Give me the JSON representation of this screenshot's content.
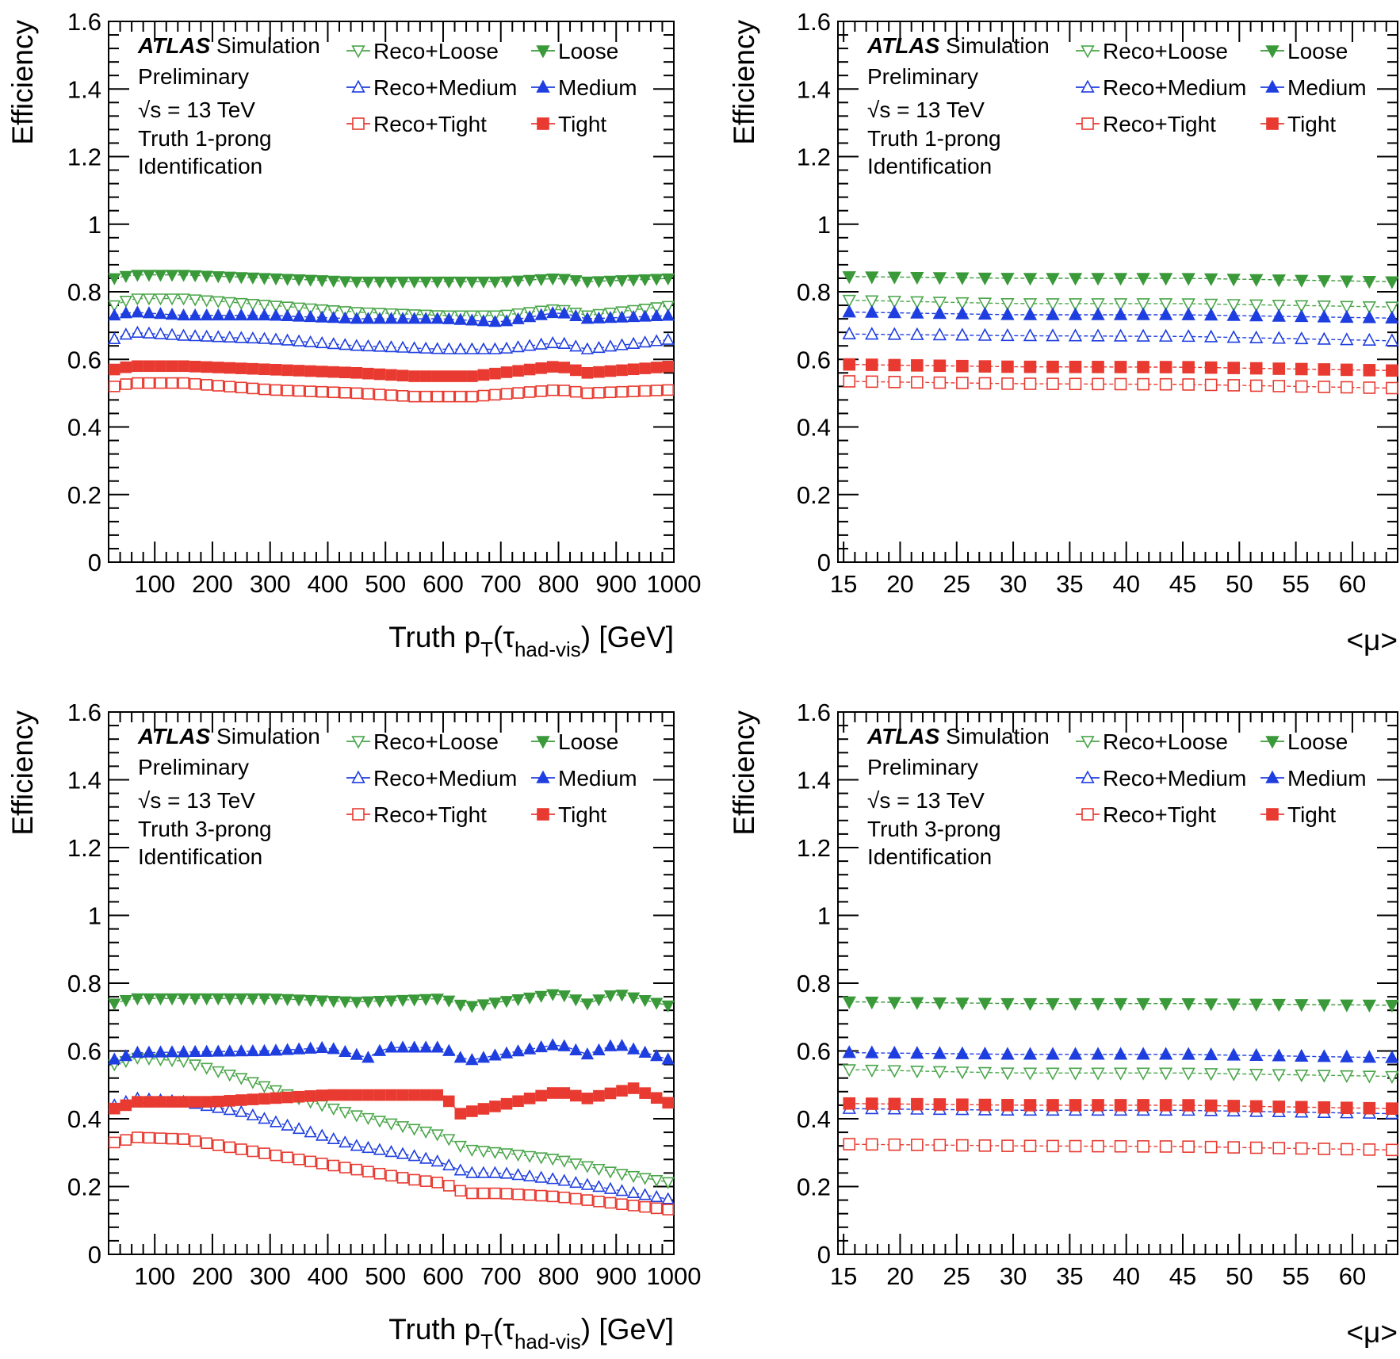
{
  "common": {
    "atlas": "ATLAS",
    "simulation": "Simulation",
    "preliminary": "Preliminary",
    "sqrt": "√s",
    "energy": " = 13 TeV",
    "identification": "Identification",
    "ylabel": "Efficiency"
  },
  "series_styles": [
    {
      "name": "Reco+Loose",
      "color": "#4aa54a",
      "marker": "triangle-down-open"
    },
    {
      "name": "Loose",
      "color": "#3a9a3a",
      "marker": "triangle-down-filled"
    },
    {
      "name": "Reco+Medium",
      "color": "#1f3ee0",
      "marker": "triangle-up-open"
    },
    {
      "name": "Medium",
      "color": "#1f3ee0",
      "marker": "triangle-up-filled"
    },
    {
      "name": "Reco+Tight",
      "color": "#e83a30",
      "marker": "square-open"
    },
    {
      "name": "Tight",
      "color": "#e83a30",
      "marker": "square-filled"
    }
  ],
  "chart_data": [
    {
      "type": "scatter",
      "prong": "Truth 1-prong",
      "xlabel_main": "Truth p",
      "xlabel_sub1": "T",
      "xlabel_mid": "(τ",
      "xlabel_sub2": "had-vis",
      "xlabel_end": ") [GeV]",
      "xlim": [
        20,
        1000
      ],
      "ylim": [
        0,
        1.6
      ],
      "xticks": [
        100,
        200,
        300,
        400,
        500,
        600,
        700,
        800,
        900,
        1000
      ],
      "yticks": [
        0,
        0.2,
        0.4,
        0.6,
        0.8,
        1,
        1.2,
        1.4,
        1.6
      ],
      "x_start": 30,
      "x_step": 20,
      "n": 49,
      "series": [
        {
          "name": "Reco+Loose",
          "anchors": [
            [
              30,
              0.76
            ],
            [
              60,
              0.78
            ],
            [
              150,
              0.78
            ],
            [
              300,
              0.76
            ],
            [
              450,
              0.74
            ],
            [
              600,
              0.73
            ],
            [
              700,
              0.73
            ],
            [
              800,
              0.75
            ],
            [
              850,
              0.73
            ],
            [
              1000,
              0.76
            ]
          ]
        },
        {
          "name": "Loose",
          "anchors": [
            [
              30,
              0.84
            ],
            [
              60,
              0.85
            ],
            [
              150,
              0.85
            ],
            [
              300,
              0.84
            ],
            [
              450,
              0.83
            ],
            [
              600,
              0.83
            ],
            [
              700,
              0.83
            ],
            [
              800,
              0.84
            ],
            [
              850,
              0.83
            ],
            [
              1000,
              0.84
            ]
          ]
        },
        {
          "name": "Reco+Medium",
          "anchors": [
            [
              30,
              0.66
            ],
            [
              60,
              0.68
            ],
            [
              150,
              0.67
            ],
            [
              300,
              0.66
            ],
            [
              450,
              0.64
            ],
            [
              600,
              0.63
            ],
            [
              700,
              0.63
            ],
            [
              800,
              0.65
            ],
            [
              850,
              0.63
            ],
            [
              1000,
              0.66
            ]
          ]
        },
        {
          "name": "Medium",
          "anchors": [
            [
              30,
              0.73
            ],
            [
              60,
              0.74
            ],
            [
              150,
              0.73
            ],
            [
              300,
              0.73
            ],
            [
              450,
              0.72
            ],
            [
              600,
              0.72
            ],
            [
              700,
              0.71
            ],
            [
              800,
              0.74
            ],
            [
              850,
              0.72
            ],
            [
              1000,
              0.73
            ]
          ]
        },
        {
          "name": "Reco+Tight",
          "anchors": [
            [
              30,
              0.52
            ],
            [
              60,
              0.53
            ],
            [
              150,
              0.53
            ],
            [
              300,
              0.51
            ],
            [
              450,
              0.5
            ],
            [
              550,
              0.49
            ],
            [
              650,
              0.49
            ],
            [
              800,
              0.51
            ],
            [
              850,
              0.5
            ],
            [
              1000,
              0.51
            ]
          ]
        },
        {
          "name": "Tight",
          "anchors": [
            [
              30,
              0.57
            ],
            [
              60,
              0.58
            ],
            [
              150,
              0.58
            ],
            [
              300,
              0.57
            ],
            [
              450,
              0.56
            ],
            [
              550,
              0.55
            ],
            [
              650,
              0.55
            ],
            [
              800,
              0.58
            ],
            [
              850,
              0.56
            ],
            [
              1000,
              0.58
            ]
          ]
        }
      ]
    },
    {
      "type": "scatter",
      "prong": "Truth 1-prong",
      "xlabel_main": "<μ>",
      "xlim": [
        14.5,
        64
      ],
      "ylim": [
        0,
        1.6
      ],
      "xticks": [
        15,
        20,
        25,
        30,
        35,
        40,
        45,
        50,
        55,
        60
      ],
      "yticks": [
        0,
        0.2,
        0.4,
        0.6,
        0.8,
        1,
        1.2,
        1.4,
        1.6
      ],
      "x_start": 15.5,
      "x_step": 2,
      "n": 25,
      "series": [
        {
          "name": "Reco+Loose",
          "anchors": [
            [
              15.5,
              0.775
            ],
            [
              30,
              0.765
            ],
            [
              45,
              0.765
            ],
            [
              63.5,
              0.755
            ]
          ]
        },
        {
          "name": "Loose",
          "anchors": [
            [
              15.5,
              0.845
            ],
            [
              30,
              0.84
            ],
            [
              45,
              0.84
            ],
            [
              63.5,
              0.83
            ]
          ]
        },
        {
          "name": "Reco+Medium",
          "anchors": [
            [
              15.5,
              0.675
            ],
            [
              30,
              0.67
            ],
            [
              45,
              0.668
            ],
            [
              63.5,
              0.655
            ]
          ]
        },
        {
          "name": "Medium",
          "anchors": [
            [
              15.5,
              0.74
            ],
            [
              30,
              0.732
            ],
            [
              45,
              0.732
            ],
            [
              63.5,
              0.722
            ]
          ]
        },
        {
          "name": "Reco+Tight",
          "anchors": [
            [
              15.5,
              0.535
            ],
            [
              30,
              0.528
            ],
            [
              45,
              0.526
            ],
            [
              63.5,
              0.515
            ]
          ]
        },
        {
          "name": "Tight",
          "anchors": [
            [
              15.5,
              0.585
            ],
            [
              30,
              0.578
            ],
            [
              45,
              0.577
            ],
            [
              63.5,
              0.567
            ]
          ]
        }
      ]
    },
    {
      "type": "scatter",
      "prong": "Truth 3-prong",
      "xlabel_main": "Truth p",
      "xlabel_sub1": "T",
      "xlabel_mid": "(τ",
      "xlabel_sub2": "had-vis",
      "xlabel_end": ") [GeV]",
      "xlim": [
        20,
        1000
      ],
      "ylim": [
        0,
        1.6
      ],
      "xticks": [
        100,
        200,
        300,
        400,
        500,
        600,
        700,
        800,
        900,
        1000
      ],
      "yticks": [
        0,
        0.2,
        0.4,
        0.6,
        0.8,
        1,
        1.2,
        1.4,
        1.6
      ],
      "x_start": 30,
      "x_step": 20,
      "n": 49,
      "series": [
        {
          "name": "Reco+Loose",
          "anchors": [
            [
              30,
              0.56
            ],
            [
              70,
              0.58
            ],
            [
              150,
              0.57
            ],
            [
              250,
              0.52
            ],
            [
              350,
              0.46
            ],
            [
              450,
              0.41
            ],
            [
              550,
              0.37
            ],
            [
              600,
              0.35
            ],
            [
              640,
              0.31
            ],
            [
              700,
              0.3
            ],
            [
              800,
              0.28
            ],
            [
              900,
              0.24
            ],
            [
              1000,
              0.21
            ]
          ]
        },
        {
          "name": "Loose",
          "anchors": [
            [
              30,
              0.74
            ],
            [
              60,
              0.755
            ],
            [
              300,
              0.755
            ],
            [
              450,
              0.745
            ],
            [
              600,
              0.755
            ],
            [
              640,
              0.73
            ],
            [
              700,
              0.745
            ],
            [
              800,
              0.77
            ],
            [
              850,
              0.74
            ],
            [
              900,
              0.77
            ],
            [
              1000,
              0.73
            ]
          ]
        },
        {
          "name": "Reco+Medium",
          "anchors": [
            [
              30,
              0.44
            ],
            [
              70,
              0.46
            ],
            [
              150,
              0.45
            ],
            [
              250,
              0.42
            ],
            [
              350,
              0.37
            ],
            [
              450,
              0.32
            ],
            [
              550,
              0.29
            ],
            [
              600,
              0.27
            ],
            [
              640,
              0.24
            ],
            [
              700,
              0.24
            ],
            [
              800,
              0.22
            ],
            [
              900,
              0.19
            ],
            [
              1000,
              0.16
            ]
          ]
        },
        {
          "name": "Medium",
          "anchors": [
            [
              30,
              0.575
            ],
            [
              70,
              0.595
            ],
            [
              300,
              0.6
            ],
            [
              400,
              0.61
            ],
            [
              470,
              0.58
            ],
            [
              500,
              0.61
            ],
            [
              600,
              0.61
            ],
            [
              640,
              0.57
            ],
            [
              700,
              0.59
            ],
            [
              800,
              0.62
            ],
            [
              850,
              0.59
            ],
            [
              900,
              0.62
            ],
            [
              1000,
              0.57
            ]
          ]
        },
        {
          "name": "Reco+Tight",
          "anchors": [
            [
              30,
              0.33
            ],
            [
              70,
              0.345
            ],
            [
              150,
              0.34
            ],
            [
              250,
              0.31
            ],
            [
              350,
              0.28
            ],
            [
              450,
              0.25
            ],
            [
              550,
              0.22
            ],
            [
              600,
              0.21
            ],
            [
              640,
              0.18
            ],
            [
              700,
              0.18
            ],
            [
              800,
              0.17
            ],
            [
              900,
              0.15
            ],
            [
              1000,
              0.13
            ]
          ]
        },
        {
          "name": "Tight",
          "anchors": [
            [
              30,
              0.43
            ],
            [
              70,
              0.45
            ],
            [
              200,
              0.45
            ],
            [
              300,
              0.46
            ],
            [
              400,
              0.47
            ],
            [
              500,
              0.47
            ],
            [
              600,
              0.47
            ],
            [
              630,
              0.415
            ],
            [
              700,
              0.44
            ],
            [
              800,
              0.48
            ],
            [
              850,
              0.46
            ],
            [
              930,
              0.49
            ],
            [
              1000,
              0.44
            ]
          ]
        }
      ]
    },
    {
      "type": "scatter",
      "prong": "Truth 3-prong",
      "xlabel_main": "<μ>",
      "xlim": [
        14.5,
        64
      ],
      "ylim": [
        0,
        1.6
      ],
      "xticks": [
        15,
        20,
        25,
        30,
        35,
        40,
        45,
        50,
        55,
        60
      ],
      "yticks": [
        0,
        0.2,
        0.4,
        0.6,
        0.8,
        1,
        1.2,
        1.4,
        1.6
      ],
      "x_start": 15.5,
      "x_step": 2,
      "n": 25,
      "series": [
        {
          "name": "Reco+Loose",
          "anchors": [
            [
              15.5,
              0.545
            ],
            [
              30,
              0.535
            ],
            [
              45,
              0.535
            ],
            [
              63.5,
              0.525
            ]
          ]
        },
        {
          "name": "Loose",
          "anchors": [
            [
              15.5,
              0.745
            ],
            [
              30,
              0.74
            ],
            [
              45,
              0.74
            ],
            [
              63.5,
              0.735
            ]
          ]
        },
        {
          "name": "Reco+Medium",
          "anchors": [
            [
              15.5,
              0.43
            ],
            [
              30,
              0.425
            ],
            [
              45,
              0.425
            ],
            [
              63.5,
              0.415
            ]
          ]
        },
        {
          "name": "Medium",
          "anchors": [
            [
              15.5,
              0.595
            ],
            [
              30,
              0.59
            ],
            [
              45,
              0.59
            ],
            [
              63.5,
              0.58
            ]
          ]
        },
        {
          "name": "Reco+Tight",
          "anchors": [
            [
              15.5,
              0.325
            ],
            [
              30,
              0.32
            ],
            [
              45,
              0.318
            ],
            [
              63.5,
              0.308
            ]
          ]
        },
        {
          "name": "Tight",
          "anchors": [
            [
              15.5,
              0.445
            ],
            [
              30,
              0.44
            ],
            [
              45,
              0.44
            ],
            [
              63.5,
              0.43
            ]
          ]
        }
      ]
    }
  ]
}
